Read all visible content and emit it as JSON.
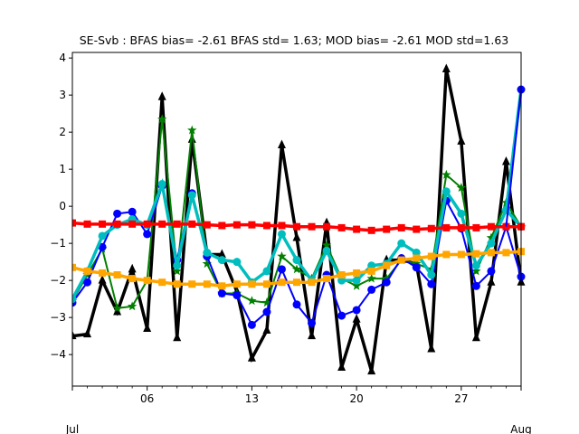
{
  "chart_data": {
    "type": "line",
    "title": "SE-Svb   : BFAS bias= -2.61 BFAS std= 1.63; MOD bias= -2.61 MOD std=1.63",
    "xlabel": "",
    "ylabel": "",
    "xlim": [
      1,
      31
    ],
    "ylim": [
      -4.85,
      4.15
    ],
    "x_ticks": [
      {
        "value": 1,
        "label": ""
      },
      {
        "value": 6,
        "label": "06"
      },
      {
        "value": 13,
        "label": "13"
      },
      {
        "value": 20,
        "label": "20"
      },
      {
        "value": 27,
        "label": "27"
      },
      {
        "value": 31,
        "label": ""
      }
    ],
    "x_minor_ticks": [
      2,
      3,
      4,
      5,
      7,
      8,
      9,
      10,
      11,
      12,
      14,
      15,
      16,
      17,
      18,
      19,
      21,
      22,
      23,
      24,
      25,
      26,
      28,
      29,
      30
    ],
    "x_secondary_labels": [
      {
        "value": 1,
        "label": "Jul"
      },
      {
        "value": 31,
        "label": "Aug"
      }
    ],
    "y_ticks": [
      -4,
      -3,
      -2,
      -1,
      0,
      1,
      2,
      3,
      4
    ],
    "x": [
      1,
      2,
      3,
      4,
      5,
      6,
      7,
      8,
      9,
      10,
      11,
      12,
      13,
      14,
      15,
      16,
      17,
      18,
      19,
      20,
      21,
      22,
      23,
      24,
      25,
      26,
      27,
      28,
      29,
      30,
      31
    ],
    "series": [
      {
        "color": "#000000",
        "marker": "triangle",
        "width": 3.5,
        "values": [
          -3.5,
          -3.45,
          -2.0,
          -2.85,
          -1.7,
          -3.3,
          2.95,
          -3.55,
          1.8,
          -1.3,
          -1.3,
          -2.3,
          -4.1,
          -3.35,
          1.65,
          -0.85,
          -3.5,
          -0.45,
          -4.35,
          -3.05,
          -4.45,
          -1.45,
          -1.45,
          -1.55,
          -3.85,
          3.7,
          1.75,
          -3.55,
          -2.05,
          1.2,
          -2.05
        ]
      },
      {
        "color": "#008000",
        "marker": "star",
        "width": 2,
        "values": [
          -2.55,
          -1.85,
          -1.15,
          -2.75,
          -2.7,
          -2.0,
          2.35,
          -1.75,
          2.05,
          -1.55,
          -2.35,
          -2.35,
          -2.55,
          -2.6,
          -1.35,
          -1.7,
          -1.95,
          -1.05,
          -1.95,
          -2.15,
          -1.95,
          -1.95,
          -1.45,
          -1.55,
          -1.7,
          0.85,
          0.5,
          -1.75,
          -0.85,
          0.1,
          -0.55
        ]
      },
      {
        "color": "#0000ff",
        "marker": "circle",
        "width": 2,
        "values": [
          -2.6,
          -2.05,
          -1.1,
          -0.2,
          -0.15,
          -0.75,
          0.55,
          -1.45,
          0.35,
          -1.35,
          -2.35,
          -2.4,
          -3.2,
          -2.85,
          -1.7,
          -2.65,
          -3.15,
          -1.85,
          -2.95,
          -2.8,
          -2.25,
          -2.05,
          -1.4,
          -1.65,
          -2.1,
          0.15,
          -0.6,
          -2.15,
          -1.75,
          -0.55,
          -1.9
        ]
      },
      {
        "color": "#00bebe",
        "marker": "circle",
        "width": 3.5,
        "values": [
          -2.5,
          -1.75,
          -0.8,
          -0.5,
          -0.35,
          -0.5,
          0.6,
          -1.6,
          0.3,
          -1.25,
          -1.45,
          -1.5,
          -2.05,
          -1.75,
          -0.75,
          -1.45,
          -2.0,
          -1.2,
          -2.0,
          -2.0,
          -1.6,
          -1.55,
          -1.0,
          -1.25,
          -1.85,
          0.4,
          -0.2,
          -1.6,
          -1.0,
          -0.1,
          -0.55
        ]
      },
      {
        "color": "#ff0000",
        "marker": "square",
        "width": 3.5,
        "values": [
          -0.45,
          -0.48,
          -0.48,
          -0.48,
          -0.48,
          -0.48,
          -0.48,
          -0.48,
          -0.48,
          -0.5,
          -0.52,
          -0.5,
          -0.5,
          -0.52,
          -0.52,
          -0.55,
          -0.55,
          -0.55,
          -0.58,
          -0.62,
          -0.65,
          -0.62,
          -0.58,
          -0.62,
          -0.6,
          -0.58,
          -0.58,
          -0.58,
          -0.55,
          -0.55,
          -0.55
        ]
      },
      {
        "color": "#ffa500",
        "marker": "square",
        "width": 3.5,
        "values": [
          -1.65,
          -1.75,
          -1.8,
          -1.85,
          -1.95,
          -2.0,
          -2.05,
          -2.1,
          -2.1,
          -2.1,
          -2.15,
          -2.1,
          -2.1,
          -2.1,
          -2.05,
          -2.05,
          -2.05,
          -1.95,
          -1.85,
          -1.8,
          -1.75,
          -1.6,
          -1.45,
          -1.4,
          -1.35,
          -1.3,
          -1.3,
          -1.28,
          -1.25,
          -1.25,
          -1.22
        ]
      }
    ],
    "last_point_overlay": {
      "color": "#0000ff",
      "x": 31,
      "y": 3.15
    },
    "grid": false,
    "legend": "none"
  }
}
